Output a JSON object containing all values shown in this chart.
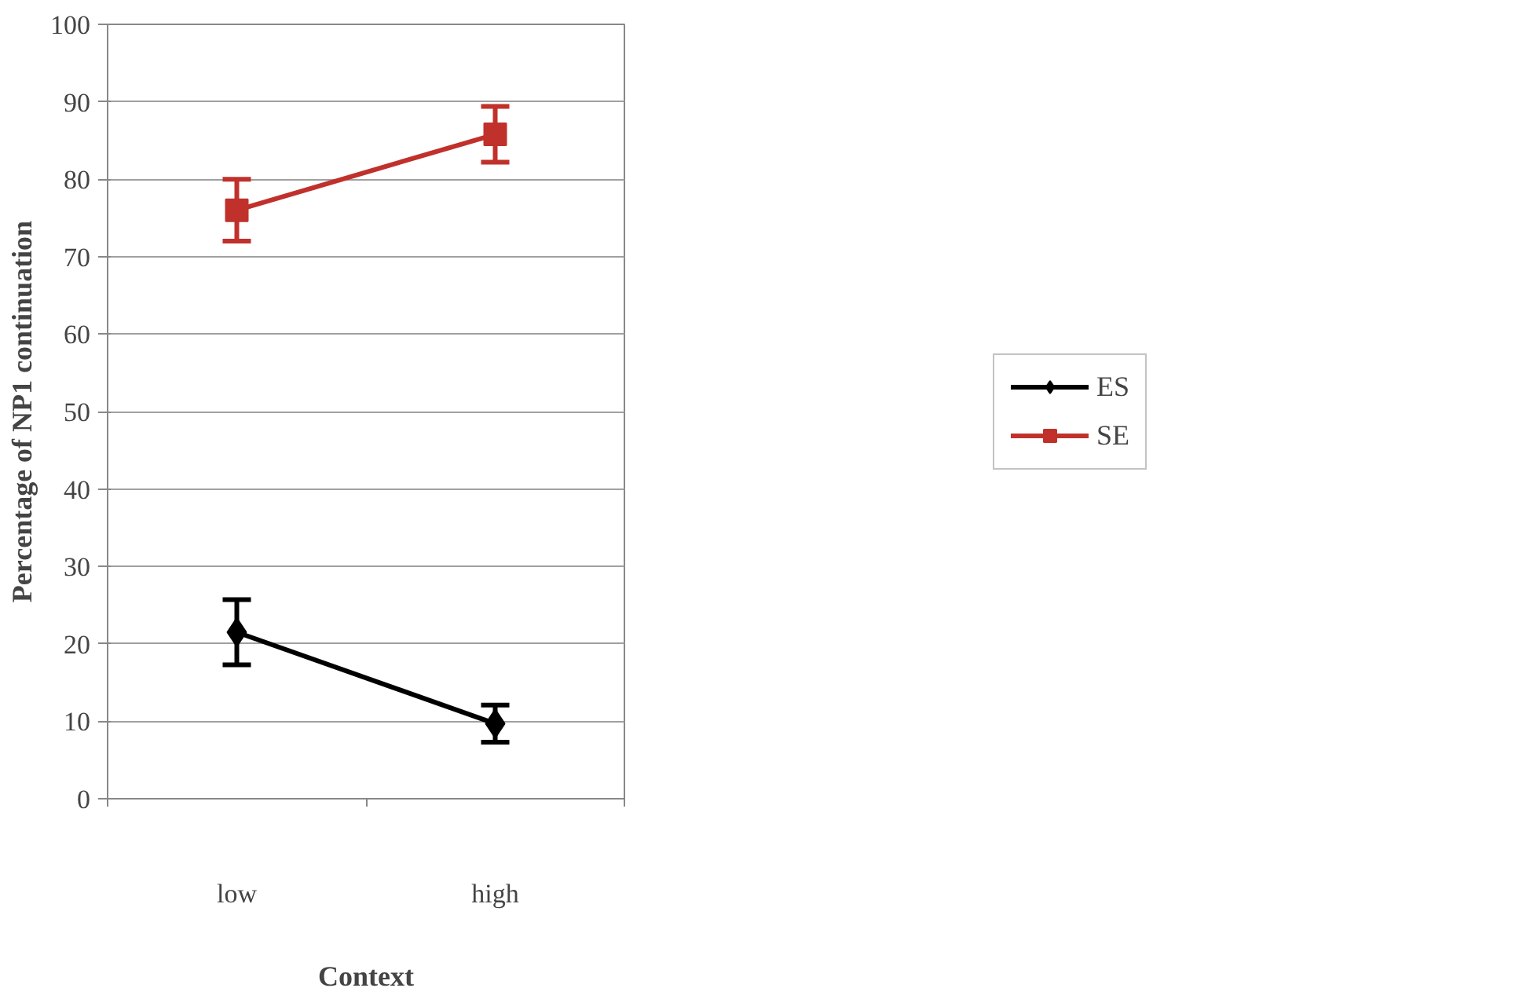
{
  "chart_data": {
    "type": "line",
    "xlabel": "Context",
    "ylabel": "Percentage of NP1 continuation",
    "categories": [
      "low",
      "high"
    ],
    "series": [
      {
        "name": "ES",
        "color": "#000000",
        "marker": "diamond",
        "values": [
          21.5,
          9.7
        ],
        "errors": [
          4.2,
          2.4
        ]
      },
      {
        "name": "SE",
        "color": "#c0312b",
        "marker": "square",
        "values": [
          76,
          85.8
        ],
        "errors": [
          4,
          3.6
        ]
      }
    ],
    "ylim": [
      0,
      100
    ],
    "yticks": [
      0,
      10,
      20,
      30,
      40,
      50,
      60,
      70,
      80,
      90,
      100
    ],
    "grid": "y",
    "legend": "right"
  }
}
